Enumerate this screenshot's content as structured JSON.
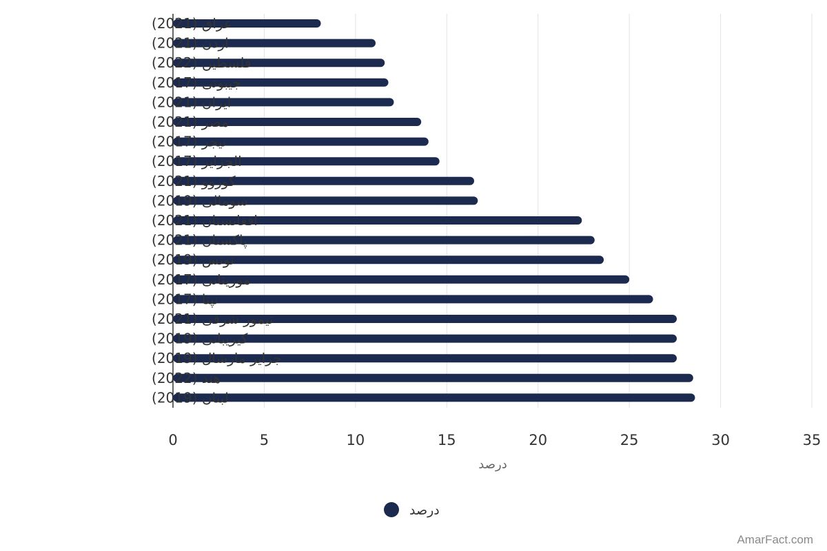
{
  "chart_data": {
    "type": "bar",
    "orientation": "horizontal",
    "title": "",
    "xlabel": "درصد",
    "ylabel": "",
    "xlim": [
      0,
      35
    ],
    "xticks": [
      0,
      5,
      10,
      15,
      20,
      25,
      30,
      35
    ],
    "grid": true,
    "legend_position": "bottom",
    "categories": [
      "عراق (2021)",
      "اردن (2021)",
      "فلسطین (2022)",
      "جیبوتی (2017)",
      "ایران (2021)",
      "مصر (2021)",
      "نیجر (2017)",
      "الجزایر (2017)",
      "کوزوو (2021)",
      "سومالی (2019)",
      "افغانستان (2021)",
      "پاکستان (2021)",
      "تونس (2019)",
      "موریتانی (2017)",
      "نپتا (2017)",
      "تیمور شرقی (2021)",
      "کیریباتی (2019)",
      "جزایر مارشال (2019)",
      "هند (2022)",
      "لبنان (2019)"
    ],
    "series": [
      {
        "name": "درصد",
        "color": "#1b2a4e",
        "values": [
          8.1,
          11.1,
          11.6,
          11.8,
          12.1,
          13.6,
          14.0,
          14.6,
          16.5,
          16.7,
          22.4,
          23.1,
          23.6,
          25.0,
          26.3,
          27.6,
          27.6,
          27.6,
          28.5,
          28.6
        ]
      }
    ]
  },
  "watermark": "AmarFact.com"
}
